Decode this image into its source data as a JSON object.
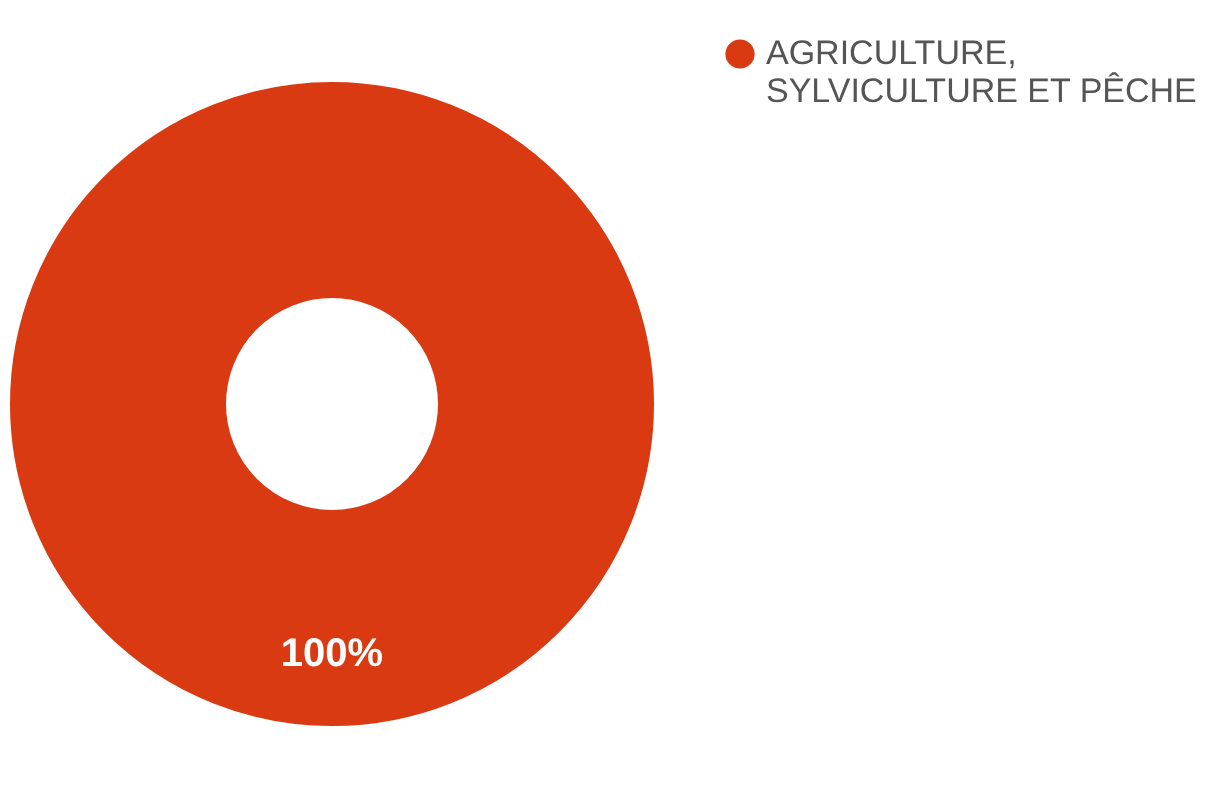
{
  "chart_data": {
    "type": "donut",
    "categories": [
      "AGRICULTURE, SYLVICULTURE ET PÊCHE"
    ],
    "values": [
      100
    ],
    "colors": [
      "#d93a12"
    ],
    "value_labels": [
      "100%"
    ],
    "legend": "top right"
  }
}
